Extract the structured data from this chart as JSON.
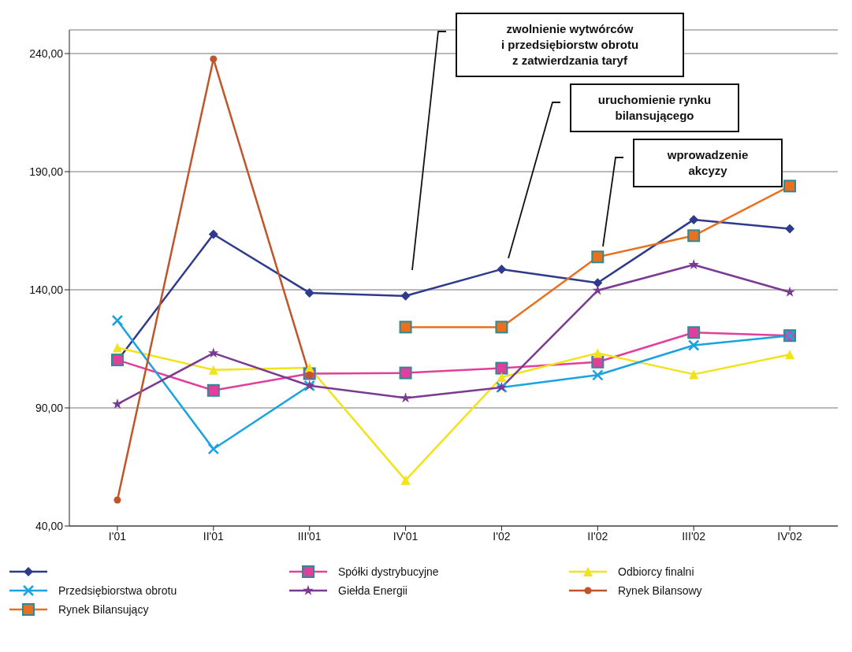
{
  "chart_data": {
    "type": "line",
    "categories": [
      "I'01",
      "II'01",
      "III'01",
      "IV'01",
      "I'02",
      "II'02",
      "III'02",
      "IV'02"
    ],
    "series": [
      {
        "color": "#2e3a8c",
        "marker": "diamond",
        "values": [
          110,
          163.5,
          138.7,
          137.4,
          148.7,
          142.9,
          169.7,
          165.8
        ]
      },
      {
        "name": "Spółki dystrybucyjne",
        "color": "#e0409a",
        "marker": "square",
        "values": [
          110.3,
          97.4,
          104.5,
          104.8,
          106.8,
          109.4,
          121.9,
          120.6
        ]
      },
      {
        "name": "Odbiorcy finalni",
        "color": "#f2e21a",
        "marker": "triangle",
        "values": [
          115.5,
          106.1,
          107,
          59.4,
          103,
          113.2,
          104.2,
          112.6
        ]
      },
      {
        "name": "Przedsiębiorstwa obrotu",
        "color": "#1aa3e0",
        "marker": "cross",
        "values": [
          127,
          72.6,
          99.4,
          null,
          98.7,
          103.9,
          116.5,
          120.6
        ]
      },
      {
        "name": "Giełda Energii",
        "color": "#7a3a92",
        "marker": "star",
        "values": [
          91.6,
          113.2,
          99.4,
          94.2,
          98.7,
          139.7,
          150.6,
          139
        ]
      },
      {
        "name": "Rynek Bilansowy",
        "color": "#c0552a",
        "marker": "circle",
        "values": [
          51,
          237.7,
          103.9,
          null,
          null,
          null,
          null,
          null
        ]
      },
      {
        "name": "Rynek Bilansujący",
        "color": "#e8701f",
        "marker": "square",
        "values": [
          null,
          null,
          null,
          124.2,
          124.2,
          153.9,
          162.9,
          183.9
        ]
      }
    ],
    "ylim": [
      40,
      250
    ],
    "yticks": [
      {
        "value": 40,
        "label": "40,00"
      },
      {
        "value": 90,
        "label": "90,00"
      },
      {
        "value": 140,
        "label": "140,00"
      },
      {
        "value": 190,
        "label": "190,00"
      },
      {
        "value": 240,
        "label": "240,00"
      }
    ],
    "grid": "y",
    "legend": "bottom",
    "line_style": "solid",
    "annotations": [
      "zwolnienie wytwórców\ni przedsiębiorstw obrotu\nz zatwierdzania taryf",
      "uruchomienie rynku\nbilansującego",
      "wprowadzenie\nakcyzy"
    ]
  }
}
